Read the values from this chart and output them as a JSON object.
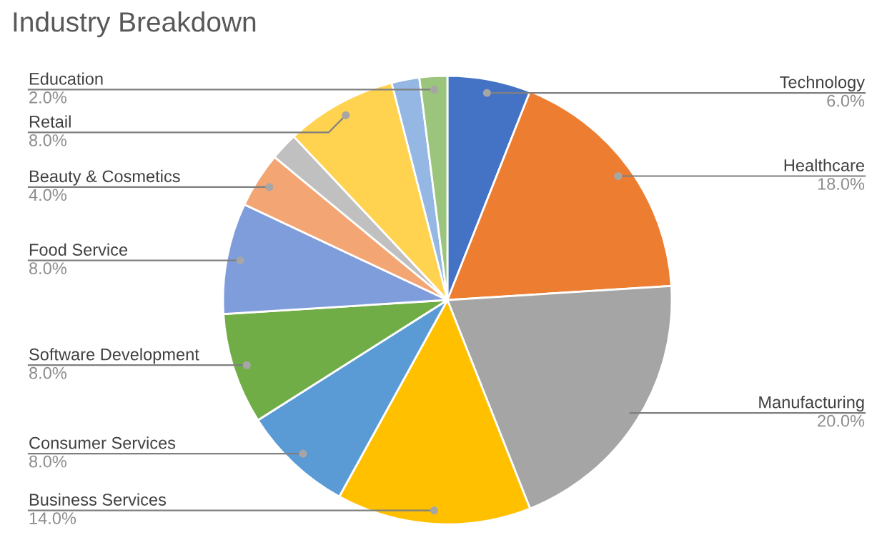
{
  "chart_data": {
    "type": "pie",
    "title": "Industry Breakdown",
    "categories": [
      "Technology",
      "Healthcare",
      "Manufacturing",
      "Business Services",
      "Consumer Services",
      "Software Development",
      "Food Service",
      "Beauty & Cosmetics",
      null,
      "Retail",
      null,
      "Education"
    ],
    "values": [
      6,
      18,
      20,
      14,
      8,
      8,
      8,
      4,
      2,
      8,
      2,
      2
    ],
    "colors": [
      "#4472c4",
      "#ed7d31",
      "#a5a5a5",
      "#ffc000",
      "#5b9bd5",
      "#70ad47",
      "#7f9ddb",
      "#f4a574",
      "#c0c0c0",
      "#ffd24f",
      "#94b8e3",
      "#9bc57d"
    ],
    "value_labels": [
      "6.0%",
      "18.0%",
      "20.0%",
      "14.0%",
      "8.0%",
      "8.0%",
      "8.0%",
      "4.0%",
      null,
      "8.0%",
      null,
      "2.0%"
    ]
  }
}
